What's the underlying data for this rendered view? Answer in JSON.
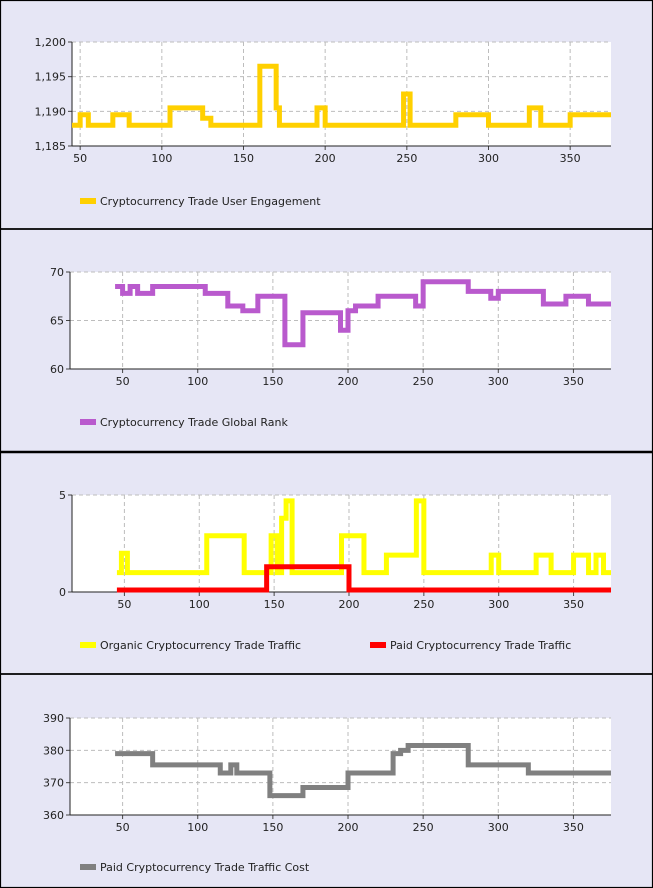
{
  "colors": {
    "panel_bg": "#E6E6F5",
    "plot_bg": "#FFFFFF",
    "frame": "#000000",
    "grid": "#BDBDBD"
  },
  "chart_data": [
    {
      "type": "line",
      "step": true,
      "xlim": [
        45,
        375
      ],
      "ylim": [
        1185,
        1200
      ],
      "xticks": [
        50,
        100,
        150,
        200,
        250,
        300,
        350
      ],
      "yticks": [
        1185,
        1190,
        1195,
        1200
      ],
      "ytick_labels": [
        "1,185",
        "1,190",
        "1,195",
        "1,200"
      ],
      "grid": true,
      "legend_position": "bottom-left",
      "series": [
        {
          "name": "Cryptocurrency Trade User Engagement",
          "color": "#FFD000",
          "x": [
            45,
            50,
            55,
            70,
            80,
            105,
            125,
            130,
            160,
            170,
            172,
            195,
            200,
            248,
            252,
            280,
            300,
            325,
            332,
            350,
            375
          ],
          "y": [
            1188,
            1189.5,
            1188,
            1189.5,
            1188,
            1190.5,
            1189,
            1188,
            1196.5,
            1190.5,
            1188,
            1190.5,
            1188,
            1192.5,
            1188,
            1189.5,
            1188,
            1190.5,
            1188,
            1189.5,
            1189.5
          ]
        }
      ]
    },
    {
      "type": "line",
      "step": true,
      "xlim": [
        15,
        375
      ],
      "ylim": [
        60,
        70
      ],
      "xticks": [
        50,
        100,
        150,
        200,
        250,
        300,
        350
      ],
      "yticks": [
        60,
        65,
        70
      ],
      "ytick_labels": [
        "60",
        "65",
        "70"
      ],
      "grid": true,
      "legend_position": "bottom-left",
      "series": [
        {
          "name": "Cryptocurrency Trade Global Rank",
          "color": "#B95ACD",
          "x": [
            45,
            50,
            55,
            60,
            70,
            105,
            120,
            130,
            140,
            158,
            170,
            195,
            200,
            205,
            220,
            245,
            250,
            260,
            280,
            295,
            300,
            305,
            330,
            345,
            360,
            375
          ],
          "y": [
            68.5,
            67.8,
            68.5,
            67.8,
            68.5,
            67.8,
            66.5,
            66,
            67.5,
            62.5,
            65.8,
            64,
            66,
            66.5,
            67.5,
            66.5,
            69,
            69,
            68,
            67.3,
            68,
            68,
            66.7,
            67.5,
            66.7,
            66.7
          ]
        }
      ]
    },
    {
      "type": "line",
      "step": true,
      "xlim": [
        15,
        375
      ],
      "ylim": [
        0,
        5
      ],
      "xticks": [
        50,
        100,
        150,
        200,
        250,
        300,
        350
      ],
      "yticks": [
        0,
        5
      ],
      "ytick_labels": [
        "0",
        "5"
      ],
      "grid": true,
      "legend_position": "bottom",
      "series": [
        {
          "name": "Organic Cryptocurrency Trade Traffic",
          "color": "#FFFF00",
          "x": [
            45,
            48,
            52,
            105,
            130,
            148,
            152,
            155,
            158,
            162,
            165,
            195,
            210,
            225,
            245,
            250,
            295,
            300,
            325,
            335,
            350,
            360,
            365,
            370,
            375
          ],
          "y": [
            1,
            2,
            1,
            2.9,
            1,
            2.9,
            1,
            3.8,
            4.7,
            1,
            1,
            2.9,
            1,
            1.9,
            4.7,
            1,
            1.9,
            1,
            1.9,
            1,
            1.9,
            1,
            1.9,
            1,
            1
          ]
        },
        {
          "name": "Paid Cryptocurrency Trade Traffic",
          "color": "#FF0000",
          "x": [
            45,
            145,
            200,
            375
          ],
          "y": [
            0.1,
            1.3,
            0.1,
            0.1
          ]
        }
      ]
    },
    {
      "type": "line",
      "step": true,
      "xlim": [
        15,
        375
      ],
      "ylim": [
        360,
        390
      ],
      "xticks": [
        50,
        100,
        150,
        200,
        250,
        300,
        350
      ],
      "yticks": [
        360,
        370,
        380,
        390
      ],
      "ytick_labels": [
        "360",
        "370",
        "380",
        "390"
      ],
      "grid": true,
      "legend_position": "bottom-left",
      "series": [
        {
          "name": "Paid Cryptocurrency Trade Traffic Cost",
          "color": "#808080",
          "x": [
            45,
            70,
            115,
            122,
            126,
            148,
            170,
            200,
            230,
            235,
            240,
            280,
            320,
            375
          ],
          "y": [
            379,
            375.5,
            373,
            375.5,
            373,
            366,
            368.5,
            373,
            379,
            380,
            381.5,
            375.5,
            373,
            373
          ]
        }
      ]
    }
  ]
}
